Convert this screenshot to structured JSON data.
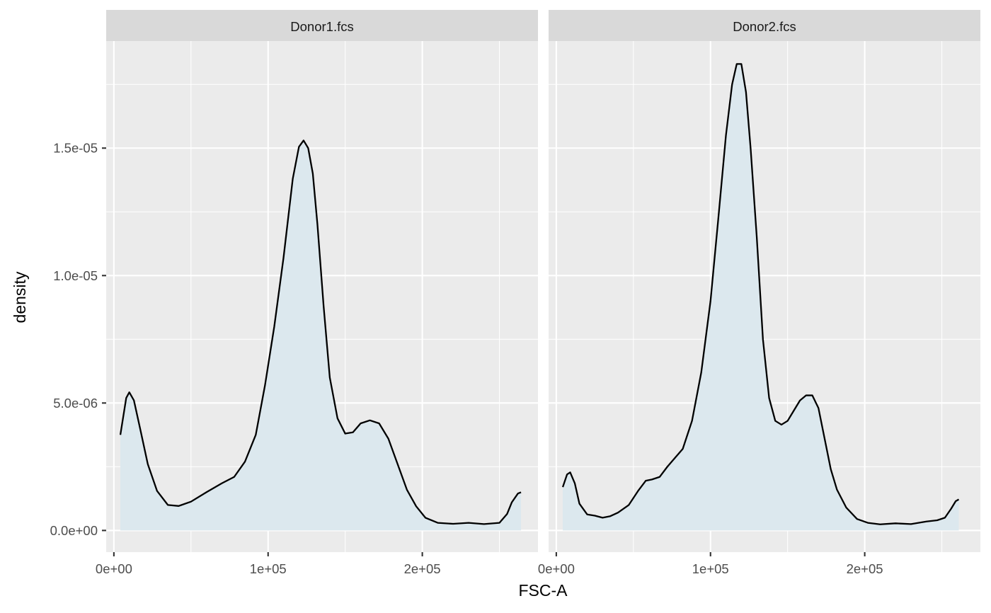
{
  "chart_data": {
    "type": "area",
    "xlabel": "FSC-A",
    "ylabel": "density",
    "xlim": [
      -5000,
      275000
    ],
    "ylim": [
      -8.5e-07,
      1.92e-05
    ],
    "x_ticks": [
      0,
      100000,
      200000
    ],
    "x_tick_labels": [
      "0e+00",
      "1e+05",
      "2e+05"
    ],
    "y_ticks": [
      0,
      5e-06,
      1e-05,
      1.5e-05
    ],
    "y_tick_labels": [
      "0.0e+00",
      "5.0e-06",
      "1.0e-05",
      "1.5e-05"
    ],
    "grid": true,
    "fill_color": "#dce8ee",
    "line_color": "#000000",
    "panels": [
      {
        "strip_label": "Donor1.fcs",
        "x": [
          4200,
          8000,
          10000,
          13000,
          17000,
          22000,
          28000,
          35000,
          42000,
          50000,
          60000,
          70000,
          78000,
          85000,
          92000,
          98000,
          104000,
          110000,
          116000,
          120000,
          123000,
          126000,
          129000,
          132000,
          136000,
          140000,
          145000,
          150000,
          155000,
          160000,
          166000,
          172000,
          178000,
          184000,
          190000,
          196000,
          202000,
          210000,
          220000,
          230000,
          240000,
          250000,
          255000,
          258000,
          262000,
          264000
        ],
        "y": [
          3.75e-06,
          5.2e-06,
          5.42e-06,
          5.1e-06,
          4e-06,
          2.6e-06,
          1.55e-06,
          1e-06,
          9.6e-07,
          1.13e-06,
          1.5e-06,
          1.85e-06,
          2.1e-06,
          2.7e-06,
          3.75e-06,
          5.7e-06,
          8e-06,
          1.07e-05,
          1.38e-05,
          1.505e-05,
          1.53e-05,
          1.5e-05,
          1.4e-05,
          1.2e-05,
          8.8e-06,
          6e-06,
          4.4e-06,
          3.8e-06,
          3.85e-06,
          4.2e-06,
          4.32e-06,
          4.2e-06,
          3.6e-06,
          2.6e-06,
          1.6e-06,
          9.5e-07,
          5e-07,
          3e-07,
          2.6e-07,
          3e-07,
          2.5e-07,
          3e-07,
          6.5e-07,
          1.1e-06,
          1.45e-06,
          1.5e-06
        ]
      },
      {
        "strip_label": "Donor2.fcs",
        "x": [
          4200,
          7000,
          9000,
          12000,
          15000,
          20000,
          25000,
          30000,
          35000,
          40000,
          47000,
          53000,
          58000,
          62000,
          67000,
          72000,
          77000,
          82000,
          88000,
          94000,
          100000,
          105000,
          110000,
          114000,
          117000,
          120000,
          123000,
          126000,
          130000,
          134000,
          138000,
          142000,
          146000,
          150000,
          154000,
          158000,
          162000,
          166000,
          170000,
          174000,
          178000,
          182000,
          188000,
          195000,
          202000,
          210000,
          220000,
          230000,
          240000,
          247000,
          252000,
          256000,
          259000,
          261000
        ],
        "y": [
          1.7e-06,
          2.2e-06,
          2.28e-06,
          1.85e-06,
          1.05e-06,
          6.3e-07,
          5.8e-07,
          5e-07,
          5.6e-07,
          7e-07,
          1e-06,
          1.55e-06,
          1.95e-06,
          2e-06,
          2.1e-06,
          2.5e-06,
          2.85e-06,
          3.2e-06,
          4.3e-06,
          6.2e-06,
          9e-06,
          1.22e-05,
          1.55e-05,
          1.75e-05,
          1.83e-05,
          1.83e-05,
          1.72e-05,
          1.5e-05,
          1.15e-05,
          7.5e-06,
          5.2e-06,
          4.3e-06,
          4.15e-06,
          4.3e-06,
          4.7e-06,
          5.1e-06,
          5.3e-06,
          5.3e-06,
          4.8e-06,
          3.6e-06,
          2.4e-06,
          1.6e-06,
          9e-07,
          4.5e-07,
          3e-07,
          2.4e-07,
          2.8e-07,
          2.5e-07,
          3.5e-07,
          4e-07,
          5e-07,
          8.5e-07,
          1.15e-06,
          1.22e-06
        ]
      }
    ]
  }
}
